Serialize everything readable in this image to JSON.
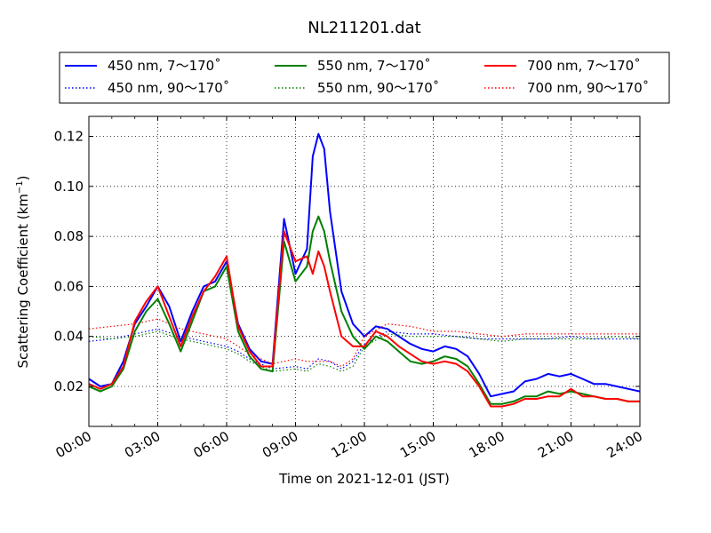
{
  "chart_data": {
    "type": "line",
    "title": "NL211201.dat",
    "xlabel": "Time on 2021-12-01 (JST)",
    "ylabel": "Scattering Coefficient (km",
    "ylabel_sup": "−1",
    "ylabel_close": ")",
    "xlim": [
      0,
      24
    ],
    "ylim": [
      0.004,
      0.128
    ],
    "x_unit": "hours",
    "x_tick_values": [
      0,
      3,
      6,
      9,
      12,
      15,
      18,
      21,
      24
    ],
    "x_tick_labels": [
      "00:00",
      "03:00",
      "06:00",
      "09:00",
      "12:00",
      "15:00",
      "18:00",
      "21:00",
      "24:00"
    ],
    "y_tick_values": [
      0.02,
      0.04,
      0.06,
      0.08,
      0.1,
      0.12
    ],
    "y_tick_labels": [
      "0.02",
      "0.04",
      "0.06",
      "0.08",
      "0.10",
      "0.12"
    ],
    "grid": true,
    "legend_position": "top, above plot",
    "legend_columns": 3,
    "series": [
      {
        "name": "450 nm, 7～170˚",
        "color": "#0000ff",
        "style": "solid",
        "x": [
          0,
          0.5,
          1,
          1.5,
          2,
          2.5,
          3,
          3.5,
          4,
          4.5,
          5,
          5.5,
          6,
          6.5,
          7,
          7.5,
          8,
          8.5,
          9,
          9.5,
          9.75,
          10,
          10.25,
          10.5,
          11,
          11.5,
          12,
          12.5,
          13,
          13.5,
          14,
          14.5,
          15,
          15.5,
          16,
          16.5,
          17,
          17.5,
          18,
          18.5,
          19,
          19.5,
          20,
          20.5,
          21,
          21.5,
          22,
          22.5,
          23,
          23.5,
          24
        ],
        "y": [
          0.023,
          0.02,
          0.021,
          0.03,
          0.045,
          0.052,
          0.06,
          0.052,
          0.038,
          0.05,
          0.06,
          0.062,
          0.07,
          0.045,
          0.035,
          0.03,
          0.029,
          0.087,
          0.065,
          0.075,
          0.112,
          0.121,
          0.115,
          0.09,
          0.058,
          0.045,
          0.04,
          0.044,
          0.043,
          0.04,
          0.037,
          0.035,
          0.034,
          0.036,
          0.035,
          0.032,
          0.025,
          0.016,
          0.017,
          0.018,
          0.022,
          0.023,
          0.025,
          0.024,
          0.025,
          0.023,
          0.021,
          0.021,
          0.02,
          0.019,
          0.018
        ]
      },
      {
        "name": "450 nm, 90～170˚",
        "color": "#0000ff",
        "style": "dotted",
        "x": [
          0,
          1,
          2,
          3,
          4,
          5,
          6,
          6.5,
          7,
          8,
          9,
          9.5,
          10,
          10.5,
          11,
          11.5,
          12,
          13,
          14,
          15,
          16,
          17,
          18,
          19,
          20,
          21,
          22,
          23,
          24
        ],
        "y": [
          0.038,
          0.039,
          0.041,
          0.043,
          0.04,
          0.038,
          0.036,
          0.034,
          0.031,
          0.027,
          0.028,
          0.027,
          0.031,
          0.03,
          0.027,
          0.03,
          0.037,
          0.042,
          0.041,
          0.041,
          0.04,
          0.039,
          0.039,
          0.039,
          0.039,
          0.04,
          0.039,
          0.039,
          0.039
        ]
      },
      {
        "name": "550 nm, 7～170˚",
        "color": "#008000",
        "style": "solid",
        "x": [
          0,
          0.5,
          1,
          1.5,
          2,
          2.5,
          3,
          3.5,
          4,
          4.5,
          5,
          5.5,
          6,
          6.5,
          7,
          7.5,
          8,
          8.5,
          9,
          9.5,
          9.75,
          10,
          10.25,
          10.5,
          11,
          11.5,
          12,
          12.5,
          13,
          13.5,
          14,
          14.5,
          15,
          15.5,
          16,
          16.5,
          17,
          17.5,
          18,
          18.5,
          19,
          19.5,
          20,
          20.5,
          21,
          21.5,
          22,
          22.5,
          23,
          23.5,
          24
        ],
        "y": [
          0.02,
          0.018,
          0.02,
          0.027,
          0.042,
          0.05,
          0.055,
          0.045,
          0.034,
          0.046,
          0.058,
          0.06,
          0.068,
          0.042,
          0.032,
          0.027,
          0.026,
          0.078,
          0.062,
          0.068,
          0.082,
          0.088,
          0.082,
          0.07,
          0.05,
          0.04,
          0.035,
          0.04,
          0.038,
          0.034,
          0.03,
          0.029,
          0.03,
          0.032,
          0.031,
          0.028,
          0.021,
          0.013,
          0.013,
          0.014,
          0.016,
          0.016,
          0.018,
          0.017,
          0.018,
          0.017,
          0.016,
          0.015,
          0.015,
          0.014,
          0.014
        ]
      },
      {
        "name": "550 nm, 90～170˚",
        "color": "#008000",
        "style": "dotted",
        "x": [
          0,
          1,
          2,
          3,
          4,
          5,
          6,
          6.5,
          7,
          8,
          9,
          9.5,
          10,
          10.5,
          11,
          11.5,
          12,
          13,
          14,
          15,
          16,
          17,
          18,
          19,
          20,
          21,
          22,
          23,
          24
        ],
        "y": [
          0.04,
          0.039,
          0.04,
          0.042,
          0.039,
          0.037,
          0.035,
          0.033,
          0.03,
          0.026,
          0.027,
          0.026,
          0.029,
          0.028,
          0.026,
          0.028,
          0.036,
          0.041,
          0.04,
          0.04,
          0.04,
          0.039,
          0.038,
          0.039,
          0.039,
          0.039,
          0.039,
          0.04,
          0.039
        ]
      },
      {
        "name": "700 nm, 7～170˚",
        "color": "#ff0000",
        "style": "solid",
        "x": [
          0,
          0.5,
          1,
          1.5,
          2,
          2.5,
          3,
          3.5,
          4,
          4.5,
          5,
          5.5,
          6,
          6.5,
          7,
          7.5,
          8,
          8.5,
          9,
          9.5,
          9.75,
          10,
          10.25,
          10.5,
          11,
          11.5,
          12,
          12.5,
          13,
          13.5,
          14,
          14.5,
          15,
          15.5,
          16,
          16.5,
          17,
          17.5,
          18,
          18.5,
          19,
          19.5,
          20,
          20.5,
          21,
          21.5,
          22,
          22.5,
          23,
          23.5,
          24
        ],
        "y": [
          0.021,
          0.019,
          0.021,
          0.028,
          0.046,
          0.054,
          0.06,
          0.048,
          0.036,
          0.048,
          0.058,
          0.064,
          0.072,
          0.044,
          0.034,
          0.028,
          0.028,
          0.082,
          0.07,
          0.072,
          0.065,
          0.074,
          0.068,
          0.058,
          0.04,
          0.036,
          0.036,
          0.042,
          0.04,
          0.036,
          0.033,
          0.03,
          0.029,
          0.03,
          0.029,
          0.026,
          0.02,
          0.012,
          0.012,
          0.013,
          0.015,
          0.015,
          0.016,
          0.016,
          0.019,
          0.016,
          0.016,
          0.015,
          0.015,
          0.014,
          0.014
        ]
      },
      {
        "name": "700 nm, 90～170˚",
        "color": "#ff0000",
        "style": "dotted",
        "x": [
          0,
          1,
          2,
          3,
          4,
          5,
          6,
          6.5,
          7,
          8,
          9,
          9.5,
          10,
          10.5,
          11,
          11.5,
          12,
          13,
          14,
          15,
          16,
          17,
          18,
          19,
          20,
          21,
          22,
          23,
          24
        ],
        "y": [
          0.043,
          0.044,
          0.045,
          0.047,
          0.043,
          0.041,
          0.039,
          0.036,
          0.033,
          0.029,
          0.031,
          0.03,
          0.03,
          0.03,
          0.028,
          0.031,
          0.04,
          0.045,
          0.044,
          0.042,
          0.042,
          0.041,
          0.04,
          0.041,
          0.041,
          0.041,
          0.041,
          0.041,
          0.041
        ]
      }
    ]
  }
}
